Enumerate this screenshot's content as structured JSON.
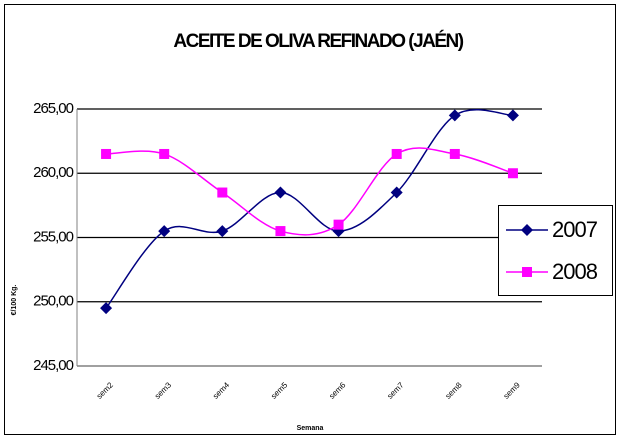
{
  "chart_data": {
    "type": "line",
    "title": "ACEITE DE OLIVA REFINADO (JAÉN)",
    "x_label": "Semana",
    "y_label": "€/100 Kg.",
    "categories": [
      "sem2",
      "sem3",
      "sem4",
      "sem5",
      "sem6",
      "sem7",
      "sem8",
      "sem9"
    ],
    "series": [
      {
        "name": "2007",
        "color": "#000080",
        "marker": "diamond",
        "values": [
          249.5,
          255.5,
          255.5,
          258.5,
          255.5,
          258.5,
          264.5,
          264.5
        ]
      },
      {
        "name": "2008",
        "color": "#ff00ff",
        "marker": "square",
        "values": [
          261.5,
          261.5,
          258.5,
          255.5,
          256.0,
          261.5,
          261.5,
          260.0
        ]
      }
    ],
    "ylim": [
      245,
      265
    ],
    "yticks": [
      {
        "value": 245,
        "label": "245,00"
      },
      {
        "value": 250,
        "label": "250,00"
      },
      {
        "value": 255,
        "label": "255,00"
      },
      {
        "value": 260,
        "label": "260,00"
      },
      {
        "value": 265,
        "label": "265,00"
      }
    ],
    "grid": true,
    "legend": "right",
    "smooth": true
  }
}
